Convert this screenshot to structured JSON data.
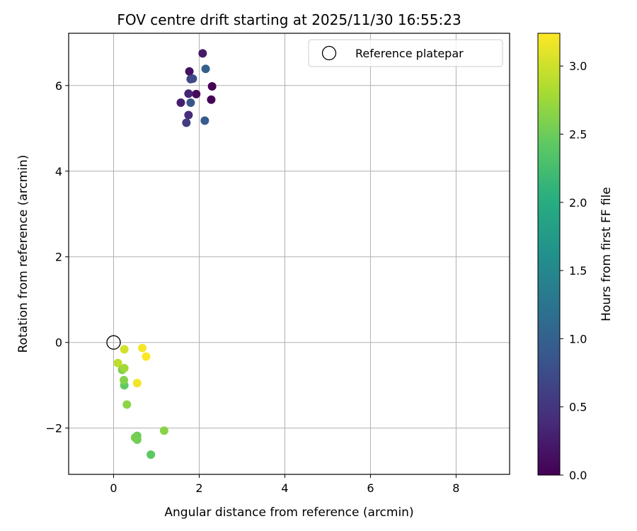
{
  "chart_data": {
    "type": "scatter",
    "title": "FOV centre drift starting at 2025/11/30 16:55:23",
    "xlabel": "Angular distance from reference (arcmin)",
    "ylabel": "Rotation from reference (arcmin)",
    "xlim": [
      -1.05,
      9.25
    ],
    "ylim": [
      -3.08,
      7.22
    ],
    "xticks": [
      0,
      2,
      4,
      6,
      8
    ],
    "xtick_labels": [
      "0",
      "2",
      "4",
      "6",
      "8"
    ],
    "yticks": [
      -2,
      0,
      2,
      4,
      6
    ],
    "ytick_labels": [
      "−2",
      "0",
      "2",
      "4",
      "6"
    ],
    "grid": true,
    "legend": {
      "placement": "top-right",
      "entries": [
        "Reference platepar"
      ]
    },
    "reference_point": {
      "x": 0.0,
      "y": 0.0,
      "label": "Reference platepar"
    },
    "colorbar": {
      "label": "Hours from first FF file",
      "colormap": "viridis",
      "range": [
        0.0,
        3.24
      ],
      "ticks": [
        0.0,
        0.5,
        1.0,
        1.5,
        2.0,
        2.5,
        3.0
      ],
      "tick_labels": [
        "0.0",
        "0.5",
        "1.0",
        "1.5",
        "2.0",
        "2.5",
        "3.0"
      ]
    },
    "points": [
      {
        "x": 2.3,
        "y": 5.98,
        "hours": 0.0
      },
      {
        "x": 2.28,
        "y": 5.67,
        "hours": 0.04
      },
      {
        "x": 1.93,
        "y": 5.8,
        "hours": 0.08
      },
      {
        "x": 1.77,
        "y": 6.33,
        "hours": 0.16
      },
      {
        "x": 2.08,
        "y": 6.75,
        "hours": 0.22
      },
      {
        "x": 1.57,
        "y": 5.6,
        "hours": 0.28
      },
      {
        "x": 1.75,
        "y": 5.81,
        "hours": 0.33
      },
      {
        "x": 1.75,
        "y": 5.31,
        "hours": 0.42
      },
      {
        "x": 1.7,
        "y": 5.13,
        "hours": 0.58
      },
      {
        "x": 1.8,
        "y": 6.15,
        "hours": 0.66
      },
      {
        "x": 1.85,
        "y": 6.16,
        "hours": 0.72
      },
      {
        "x": 1.8,
        "y": 5.6,
        "hours": 0.86
      },
      {
        "x": 2.13,
        "y": 5.18,
        "hours": 0.92
      },
      {
        "x": 2.15,
        "y": 6.39,
        "hours": 0.97
      },
      {
        "x": 0.87,
        "y": -2.62,
        "hours": 2.42
      },
      {
        "x": 0.25,
        "y": -1.0,
        "hours": 2.44
      },
      {
        "x": 0.55,
        "y": -2.18,
        "hours": 2.5
      },
      {
        "x": 0.55,
        "y": -2.27,
        "hours": 2.52
      },
      {
        "x": 0.5,
        "y": -2.22,
        "hours": 2.56
      },
      {
        "x": 0.2,
        "y": -0.64,
        "hours": 2.58
      },
      {
        "x": 0.24,
        "y": -0.88,
        "hours": 2.62
      },
      {
        "x": 1.18,
        "y": -2.06,
        "hours": 2.64
      },
      {
        "x": 0.31,
        "y": -1.45,
        "hours": 2.66
      },
      {
        "x": 0.25,
        "y": -0.6,
        "hours": 2.78
      },
      {
        "x": 0.1,
        "y": -0.48,
        "hours": 2.92
      },
      {
        "x": 0.25,
        "y": -0.16,
        "hours": 3.02
      },
      {
        "x": 0.55,
        "y": -0.95,
        "hours": 3.18
      },
      {
        "x": 0.67,
        "y": -0.13,
        "hours": 3.2
      },
      {
        "x": 0.76,
        "y": -0.33,
        "hours": 3.24
      }
    ]
  }
}
